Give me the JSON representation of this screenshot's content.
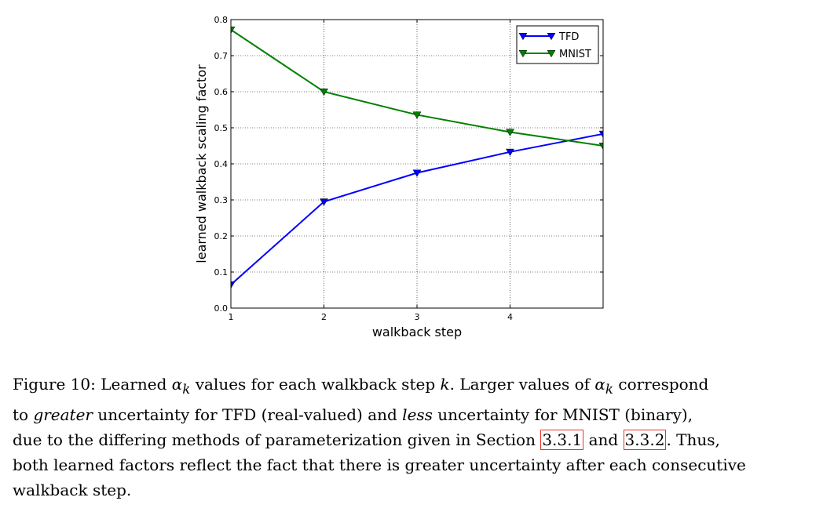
{
  "chart_data": {
    "type": "line",
    "x": [
      1,
      2,
      3,
      4,
      5
    ],
    "xlabel": "walkback step",
    "ylabel": "learned walkback scaling factor",
    "xlim": [
      1,
      5
    ],
    "ylim": [
      0.0,
      0.8
    ],
    "xticks": [
      "1",
      "2",
      "3",
      "4"
    ],
    "yticks": [
      "0.0",
      "0.1",
      "0.2",
      "0.3",
      "0.4",
      "0.5",
      "0.6",
      "0.7",
      "0.8"
    ],
    "grid": true,
    "legend_position": "top-right",
    "series": [
      {
        "name": "TFD",
        "color": "#0000ff",
        "marker": "triangle-down",
        "values": [
          0.065,
          0.295,
          0.375,
          0.433,
          0.483
        ]
      },
      {
        "name": "MNIST",
        "color": "#008000",
        "marker": "triangle-down",
        "values": [
          0.772,
          0.6,
          0.536,
          0.488,
          0.45
        ]
      }
    ]
  },
  "caption": {
    "l1_a": "Figure 10: Learned ",
    "l1_sym": "α",
    "l1_sub": "k",
    "l1_b": " values for each walkback step ",
    "l1_k": "k",
    "l1_c": ". Larger values of ",
    "l1_sym2": "α",
    "l1_sub2": "k",
    "l1_d": " correspond",
    "l2_a": "to ",
    "l2_greater": "greater",
    "l2_b": " uncertainty for TFD (real-valued) and ",
    "l2_less": "less",
    "l2_c": " uncertainty for MNIST (binary),",
    "l3_a": "due to the differing methods of parameterization given in Section ",
    "l3_ref1": "3.3.1",
    "l3_b": " and ",
    "l3_ref2": "3.3.2",
    "l3_c": ". Thus,",
    "l4": "both learned factors reflect the fact that there is greater uncertainty after each consecutive",
    "l5": "walkback step."
  }
}
